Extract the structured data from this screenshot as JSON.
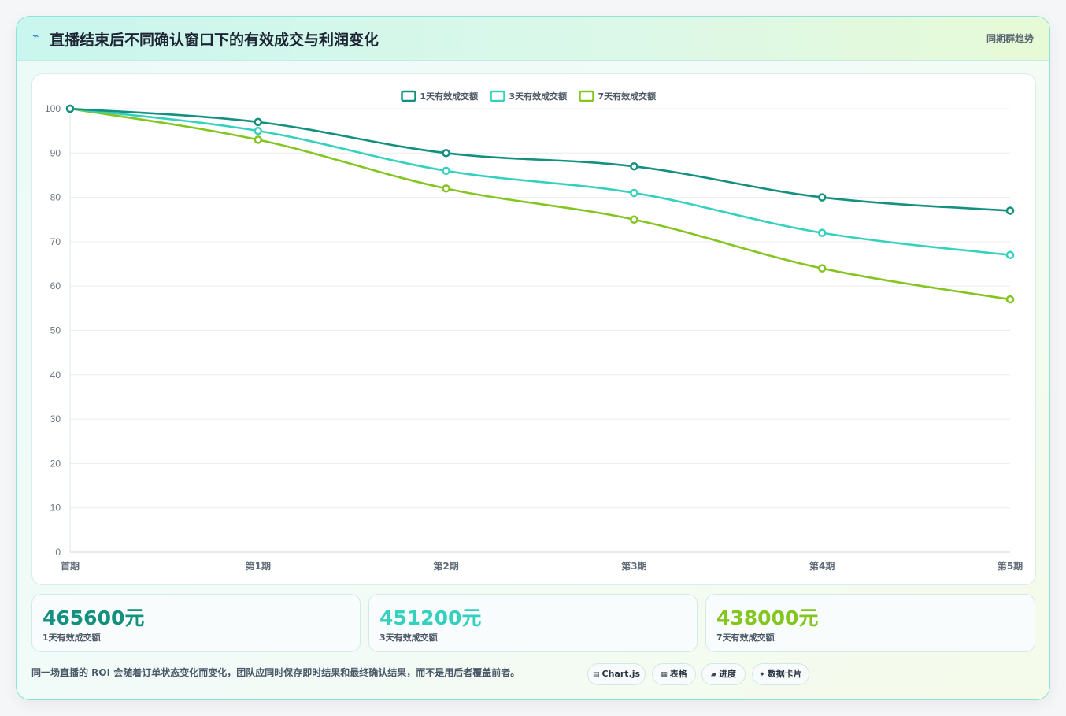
{
  "header": {
    "icon": "bolt-icon",
    "title": "直播结束后不同确认窗口下的有效成交与利润变化",
    "tag": "同期群趋势"
  },
  "colors": {
    "series1": "#14907f",
    "series2": "#36d1be",
    "series3": "#84c520"
  },
  "chart_data": {
    "type": "line",
    "categories": [
      "首期",
      "第1期",
      "第2期",
      "第3期",
      "第4期",
      "第5期"
    ],
    "series": [
      {
        "name": "1天有效成交额",
        "values": [
          100,
          97,
          90,
          87,
          80,
          77
        ]
      },
      {
        "name": "3天有效成交额",
        "values": [
          100,
          95,
          86,
          81,
          72,
          67
        ]
      },
      {
        "name": "7天有效成交额",
        "values": [
          100,
          93,
          82,
          75,
          64,
          57
        ]
      }
    ],
    "ylim": [
      0,
      100
    ],
    "yticks": [
      0,
      10,
      20,
      30,
      40,
      50,
      60,
      70,
      80,
      90,
      100
    ],
    "grid": true,
    "legend": "top-center"
  },
  "stats": [
    {
      "value": "465600元",
      "label": "1天有效成交额"
    },
    {
      "value": "451200元",
      "label": "3天有效成交额"
    },
    {
      "value": "438000元",
      "label": "7天有效成交额"
    }
  ],
  "footer": {
    "note": "同一场直播的 ROI 会随着订单状态变化而变化，团队应同时保存即时结果和最终确认结果，而不是用后者覆盖前者。",
    "pills": [
      {
        "icon": "chart-icon",
        "glyph": "▤",
        "label": "Chart.js"
      },
      {
        "icon": "table-icon",
        "glyph": "▦",
        "label": "表格"
      },
      {
        "icon": "progress-icon",
        "glyph": "▰",
        "label": "进度"
      },
      {
        "icon": "sparkle-icon",
        "glyph": "✦",
        "label": "数据卡片"
      }
    ]
  }
}
